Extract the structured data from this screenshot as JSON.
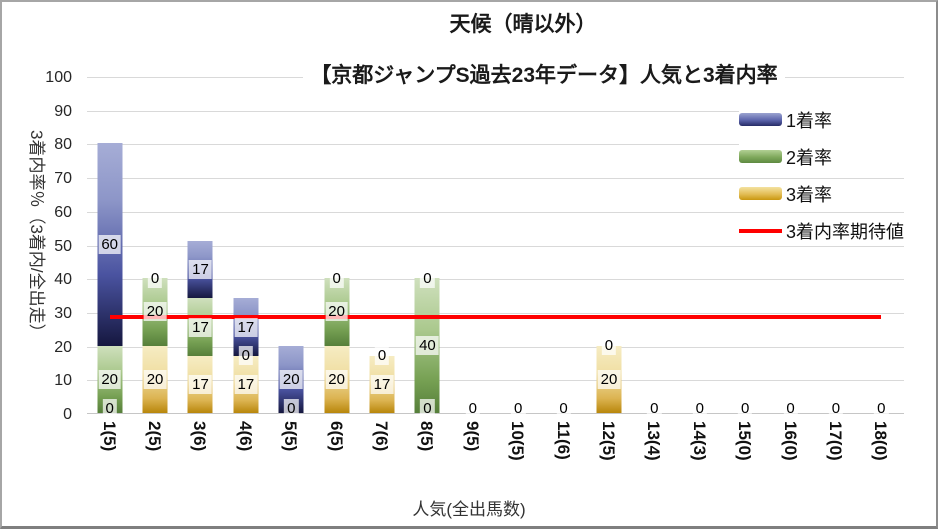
{
  "title": {
    "line1": "天候（晴以外）",
    "line2": "【京都ジャンプS過去23年データ】人気と3着内率"
  },
  "axes": {
    "y_title": "3着内率％（3着内/全出走）",
    "x_title": "人気(全出馬数)",
    "y_ticks": [
      100,
      90,
      80,
      70,
      60,
      50,
      40,
      30,
      20,
      10,
      0
    ]
  },
  "legend": [
    {
      "label": "1着率",
      "swatch": "blue"
    },
    {
      "label": "2着率",
      "swatch": "green"
    },
    {
      "label": "3着率",
      "swatch": "gold"
    },
    {
      "label": "3着内率期待値",
      "swatch": "red-line"
    }
  ],
  "colors": {
    "series_1st_top": "#a6add6",
    "series_1st_bottom": "#15173f",
    "series_2nd_top": "#cfe0bd",
    "series_2nd_bottom": "#567f3a",
    "series_3rd_top": "#f6ecc3",
    "series_3rd_bottom": "#b8860b",
    "reference_line": "#ff0000",
    "gridline": "#d9d9d9",
    "frame_border": "#a6a6a6"
  },
  "chart_data": {
    "type": "bar",
    "stacked": true,
    "title": "天候（晴以外）",
    "subtitle": "【京都ジャンプS過去23年データ】人気と3着内率",
    "categories": [
      "1(5)",
      "2(5)",
      "3(6)",
      "4(6)",
      "5(5)",
      "6(5)",
      "7(6)",
      "8(5)",
      "9(5)",
      "10(5)",
      "11(6)",
      "12(5)",
      "13(4)",
      "14(3)",
      "15(0)",
      "16(0)",
      "17(0)",
      "18(0)"
    ],
    "series": [
      {
        "name": "1着率",
        "color": "blue",
        "values": [
          60,
          0,
          17,
          17,
          20,
          0,
          0,
          0,
          0,
          0,
          0,
          0,
          0,
          0,
          0,
          0,
          0,
          0
        ]
      },
      {
        "name": "2着率",
        "color": "green",
        "values": [
          20,
          20,
          17,
          0,
          0,
          20,
          0,
          40,
          0,
          0,
          0,
          0,
          0,
          0,
          0,
          0,
          0,
          0
        ]
      },
      {
        "name": "3着率",
        "color": "gold",
        "values": [
          0,
          20,
          17,
          17,
          0,
          20,
          17,
          0,
          0,
          0,
          0,
          20,
          0,
          0,
          0,
          0,
          0,
          0
        ]
      }
    ],
    "stack_order_bottom_to_top": [
      "3着率",
      "2着率",
      "1着率"
    ],
    "reference_line": {
      "name": "3着内率期待値",
      "value": 28.6,
      "color": "#ff0000"
    },
    "xlabel": "人気(全出馬数)",
    "ylabel": "3着内率％（3着内/全出走）",
    "ylim": [
      0,
      100
    ],
    "y_tick_step": 10,
    "grid": true,
    "data_labels": true,
    "legend_position": "right"
  }
}
